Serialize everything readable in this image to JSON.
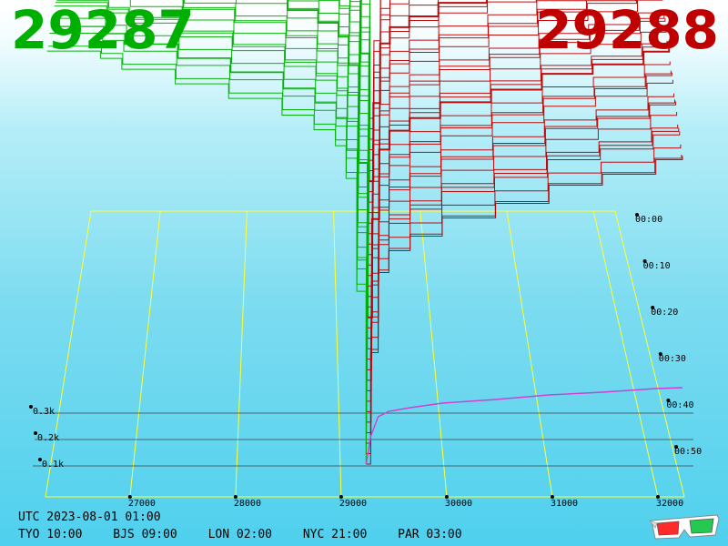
{
  "header": {
    "bid_price": "29287",
    "ask_price": "29288",
    "bid_color": "#00b000",
    "ask_color": "#c00000"
  },
  "footer": {
    "utc": "UTC 2023-08-01 01:00",
    "zones": [
      "TYO 10:00",
      "BJS 09:00",
      "LON 02:00",
      "NYC 21:00",
      "PAR 03:00"
    ]
  },
  "icons": {
    "glasses": "3d-glasses-icon"
  },
  "chart_data": {
    "type": "area",
    "view": "3d-depth-of-market",
    "x_ticks": [
      27000,
      28000,
      29000,
      30000,
      31000,
      32000
    ],
    "x_tick_labels": [
      "27000",
      "28000",
      "29000",
      "30000",
      "31000",
      "32000"
    ],
    "xlim": [
      26200,
      32250
    ],
    "depth_ticks": [
      100,
      200,
      300
    ],
    "depth_tick_labels": [
      "0.1k",
      "0.2k",
      "0.3k"
    ],
    "time_ticks": [
      0,
      10,
      20,
      30,
      40,
      50
    ],
    "time_tick_labels": [
      "00:00",
      "00:10",
      "00:20",
      "00:30",
      "00:40",
      "00:50"
    ],
    "grid": true,
    "grid_color": "#ffff33",
    "series": [
      {
        "side": "bid",
        "color": "#00b000",
        "x": [
          26300,
          26800,
          27000,
          27500,
          28000,
          28500,
          28800,
          29000,
          29100,
          29200,
          29287
        ],
        "y": [
          570,
          560,
          545,
          525,
          505,
          482,
          462,
          440,
          395,
          240,
          0
        ]
      },
      {
        "side": "ask",
        "color": "#c00000",
        "x": [
          29288,
          29330,
          29400,
          29500,
          29700,
          30000,
          30500,
          31000,
          31500,
          32000,
          32250
        ],
        "y": [
          0,
          150,
          260,
          290,
          310,
          335,
          355,
          380,
          395,
          415,
          420
        ]
      }
    ]
  }
}
